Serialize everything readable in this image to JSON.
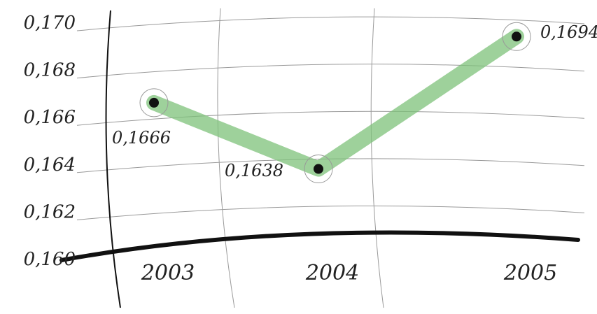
{
  "chart_data": {
    "type": "line",
    "categories": [
      "2003",
      "2004",
      "2005"
    ],
    "series": [
      {
        "values": [
          0.1666,
          0.1638,
          0.1694
        ]
      }
    ],
    "data_labels": [
      "0,1666",
      "0,1638",
      "0,1694"
    ],
    "y_ticks": [
      "0,160",
      "0,162",
      "0,164",
      "0,166",
      "0,168",
      "0,170"
    ],
    "ylim": [
      0.16,
      0.17
    ],
    "grid": true,
    "colors": {
      "line": "#7dc27a",
      "marker": "#111111",
      "axis": "#111111",
      "grid": "#9a9a9a"
    }
  }
}
